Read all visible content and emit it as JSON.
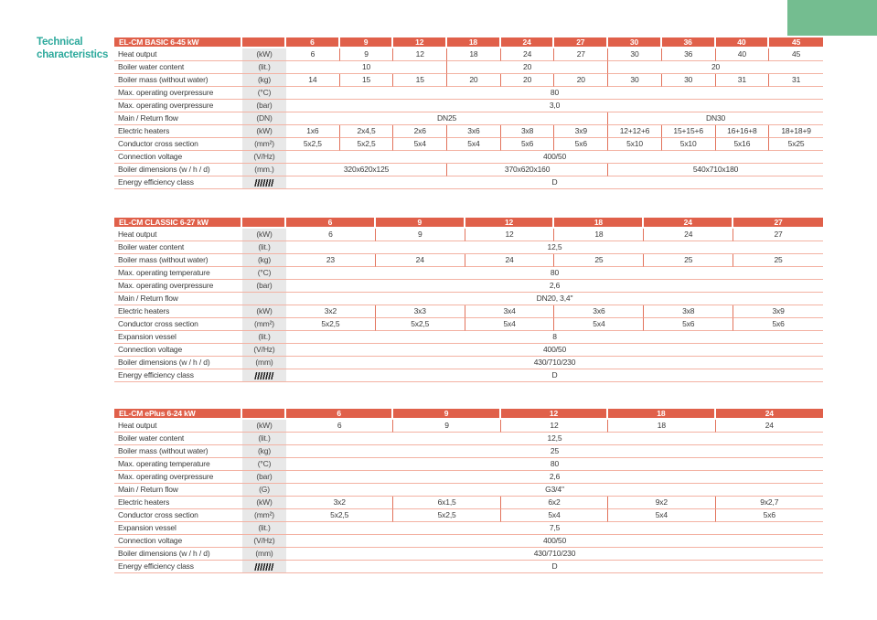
{
  "page": {
    "title": {
      "line1": "Technical",
      "line2": "characteristics"
    },
    "colors": {
      "accent_teal": "#2ca99c",
      "table_header_orange": "#e0604a",
      "row_line_salmon": "#f3b2a3",
      "cell_divider_salmon": "#e2735c",
      "unit_column_gray": "#e8e8e8",
      "green_decoration": "#74bd90"
    }
  },
  "tables": [
    {
      "title": "EL-CM BASIC 6-45 kW",
      "columns": [
        "6",
        "9",
        "12",
        "18",
        "24",
        "27",
        "30",
        "36",
        "40",
        "45"
      ],
      "rows": [
        {
          "label": "Heat output",
          "unit": "(kW)",
          "cells": [
            {
              "text": "6",
              "span": 1
            },
            {
              "text": "9",
              "span": 1
            },
            {
              "text": "12",
              "span": 1
            },
            {
              "text": "18",
              "span": 1
            },
            {
              "text": "24",
              "span": 1
            },
            {
              "text": "27",
              "span": 1
            },
            {
              "text": "30",
              "span": 1
            },
            {
              "text": "36",
              "span": 1
            },
            {
              "text": "40",
              "span": 1
            },
            {
              "text": "45",
              "span": 1
            }
          ]
        },
        {
          "label": "Boiler water content",
          "unit": "(lit.)",
          "cells": [
            {
              "text": "10",
              "span": 3
            },
            {
              "text": "20",
              "span": 3
            },
            {
              "text": "20",
              "span": 4
            }
          ]
        },
        {
          "label": "Boiler mass (without water)",
          "unit": "(kg)",
          "cells": [
            {
              "text": "14",
              "span": 1
            },
            {
              "text": "15",
              "span": 1
            },
            {
              "text": "15",
              "span": 1
            },
            {
              "text": "20",
              "span": 1
            },
            {
              "text": "20",
              "span": 1
            },
            {
              "text": "20",
              "span": 1
            },
            {
              "text": "30",
              "span": 1
            },
            {
              "text": "30",
              "span": 1
            },
            {
              "text": "31",
              "span": 1
            },
            {
              "text": "31",
              "span": 1
            }
          ]
        },
        {
          "label": "Max. operating overpressure",
          "unit": "(°C)",
          "cells": [
            {
              "text": "80",
              "span": 10
            }
          ]
        },
        {
          "label": "Max. operating overpressure",
          "unit": "(bar)",
          "cells": [
            {
              "text": "3,0",
              "span": 10
            }
          ]
        },
        {
          "label": "Main / Return flow",
          "unit": "(DN)",
          "cells": [
            {
              "text": "DN25",
              "span": 6
            },
            {
              "text": "DN30",
              "span": 4
            }
          ]
        },
        {
          "label": "Electric heaters",
          "unit": "(kW)",
          "cells": [
            {
              "text": "1x6",
              "span": 1
            },
            {
              "text": "2x4,5",
              "span": 1
            },
            {
              "text": "2x6",
              "span": 1
            },
            {
              "text": "3x6",
              "span": 1
            },
            {
              "text": "3x8",
              "span": 1
            },
            {
              "text": "3x9",
              "span": 1
            },
            {
              "text": "12+12+6",
              "span": 1
            },
            {
              "text": "15+15+6",
              "span": 1
            },
            {
              "text": "16+16+8",
              "span": 1
            },
            {
              "text": "18+18+9",
              "span": 1
            }
          ]
        },
        {
          "label": "Conductor cross section",
          "unit": "(mm²)",
          "cells": [
            {
              "text": "5x2,5",
              "span": 1
            },
            {
              "text": "5x2,5",
              "span": 1
            },
            {
              "text": "5x4",
              "span": 1
            },
            {
              "text": "5x4",
              "span": 1
            },
            {
              "text": "5x6",
              "span": 1
            },
            {
              "text": "5x6",
              "span": 1
            },
            {
              "text": "5x10",
              "span": 1
            },
            {
              "text": "5x10",
              "span": 1
            },
            {
              "text": "5x16",
              "span": 1
            },
            {
              "text": "5x25",
              "span": 1
            }
          ]
        },
        {
          "label": "Connection voltage",
          "unit": "(V/Hz)",
          "cells": [
            {
              "text": "400/50",
              "span": 10
            }
          ]
        },
        {
          "label": "Boiler dimensions (w / h / d)",
          "unit": "(mm.)",
          "cells": [
            {
              "text": "320x620x125",
              "span": 3
            },
            {
              "text": "370x620x160",
              "span": 3
            },
            {
              "text": "540x710x180",
              "span": 4
            }
          ]
        },
        {
          "label": "Energy efficiency class",
          "unit": "",
          "unit_icon": "barcode-icon",
          "cells": [
            {
              "text": "D",
              "span": 10
            }
          ]
        }
      ]
    },
    {
      "title": "EL-CM CLASSIC 6-27 kW",
      "columns": [
        "6",
        "9",
        "12",
        "18",
        "24",
        "27"
      ],
      "rows": [
        {
          "label": "Heat output",
          "unit": "(kW)",
          "cells": [
            {
              "text": "6",
              "span": 1
            },
            {
              "text": "9",
              "span": 1
            },
            {
              "text": "12",
              "span": 1
            },
            {
              "text": "18",
              "span": 1
            },
            {
              "text": "24",
              "span": 1
            },
            {
              "text": "27",
              "span": 1
            }
          ]
        },
        {
          "label": "Boiler water content",
          "unit": "(lit.)",
          "cells": [
            {
              "text": "12,5",
              "span": 6
            }
          ]
        },
        {
          "label": "Boiler mass (without water)",
          "unit": "(kg)",
          "cells": [
            {
              "text": "23",
              "span": 1
            },
            {
              "text": "24",
              "span": 1
            },
            {
              "text": "24",
              "span": 1
            },
            {
              "text": "25",
              "span": 1
            },
            {
              "text": "25",
              "span": 1
            },
            {
              "text": "25",
              "span": 1
            }
          ]
        },
        {
          "label": "Max. operating temperature",
          "unit": "(°C)",
          "cells": [
            {
              "text": "80",
              "span": 6
            }
          ]
        },
        {
          "label": "Max. operating overpressure",
          "unit": "(bar)",
          "cells": [
            {
              "text": "2,6",
              "span": 6
            }
          ]
        },
        {
          "label": "Main / Return flow",
          "unit": "",
          "cells": [
            {
              "text": "DN20, 3,4\"",
              "span": 6
            }
          ]
        },
        {
          "label": "Electric heaters",
          "unit": "(kW)",
          "cells": [
            {
              "text": "3x2",
              "span": 1
            },
            {
              "text": "3x3",
              "span": 1
            },
            {
              "text": "3x4",
              "span": 1
            },
            {
              "text": "3x6",
              "span": 1
            },
            {
              "text": "3x8",
              "span": 1
            },
            {
              "text": "3x9",
              "span": 1
            }
          ]
        },
        {
          "label": "Conductor cross section",
          "unit": "(mm²)",
          "cells": [
            {
              "text": "5x2,5",
              "span": 1
            },
            {
              "text": "5x2,5",
              "span": 1
            },
            {
              "text": "5x4",
              "span": 1
            },
            {
              "text": "5x4",
              "span": 1
            },
            {
              "text": "5x6",
              "span": 1
            },
            {
              "text": "5x6",
              "span": 1
            }
          ]
        },
        {
          "label": "Expansion vessel",
          "unit": "(lit.)",
          "cells": [
            {
              "text": "8",
              "span": 6
            }
          ]
        },
        {
          "label": "Connection voltage",
          "unit": "(V/Hz)",
          "cells": [
            {
              "text": "400/50",
              "span": 6
            }
          ]
        },
        {
          "label": "Boiler dimensions (w / h / d)",
          "unit": "(mm)",
          "cells": [
            {
              "text": "430/710/230",
              "span": 6
            }
          ]
        },
        {
          "label": "Energy efficiency class",
          "unit": "",
          "unit_icon": "barcode-icon",
          "cells": [
            {
              "text": "D",
              "span": 6
            }
          ]
        }
      ]
    },
    {
      "title": "EL-CM ePlus 6-24 kW",
      "columns": [
        "6",
        "9",
        "12",
        "18",
        "24"
      ],
      "rows": [
        {
          "label": "Heat output",
          "unit": "(kW)",
          "cells": [
            {
              "text": "6",
              "span": 1
            },
            {
              "text": "9",
              "span": 1
            },
            {
              "text": "12",
              "span": 1
            },
            {
              "text": "18",
              "span": 1
            },
            {
              "text": "24",
              "span": 1
            }
          ]
        },
        {
          "label": "Boiler water content",
          "unit": "(lit.)",
          "cells": [
            {
              "text": "12,5",
              "span": 5
            }
          ]
        },
        {
          "label": "Boiler mass (without water)",
          "unit": "(kg)",
          "cells": [
            {
              "text": "25",
              "span": 5
            }
          ]
        },
        {
          "label": "Max. operating temperature",
          "unit": "(°C)",
          "cells": [
            {
              "text": "80",
              "span": 5
            }
          ]
        },
        {
          "label": "Max. operating overpressure",
          "unit": "(bar)",
          "cells": [
            {
              "text": "2,6",
              "span": 5
            }
          ]
        },
        {
          "label": "Main / Return flow",
          "unit": "(G)",
          "cells": [
            {
              "text": "G3/4\"",
              "span": 5
            }
          ]
        },
        {
          "label": "Electric heaters",
          "unit": "(kW)",
          "cells": [
            {
              "text": "3x2",
              "span": 1
            },
            {
              "text": "6x1,5",
              "span": 1
            },
            {
              "text": "6x2",
              "span": 1
            },
            {
              "text": "9x2",
              "span": 1
            },
            {
              "text": "9x2,7",
              "span": 1
            }
          ]
        },
        {
          "label": "Conductor cross section",
          "unit": "(mm²)",
          "cells": [
            {
              "text": "5x2,5",
              "span": 1
            },
            {
              "text": "5x2,5",
              "span": 1
            },
            {
              "text": "5x4",
              "span": 1
            },
            {
              "text": "5x4",
              "span": 1
            },
            {
              "text": "5x6",
              "span": 1
            }
          ]
        },
        {
          "label": "Expansion vessel",
          "unit": "(lit.)",
          "cells": [
            {
              "text": "7,5",
              "span": 5
            }
          ]
        },
        {
          "label": "Connection voltage",
          "unit": "(V/Hz)",
          "cells": [
            {
              "text": "400/50",
              "span": 5
            }
          ]
        },
        {
          "label": "Boiler dimensions (w / h / d)",
          "unit": "(mm)",
          "cells": [
            {
              "text": "430/710/230",
              "span": 5
            }
          ]
        },
        {
          "label": "Energy efficiency class",
          "unit": "",
          "unit_icon": "barcode-icon",
          "cells": [
            {
              "text": "D",
              "span": 5
            }
          ]
        }
      ]
    }
  ]
}
